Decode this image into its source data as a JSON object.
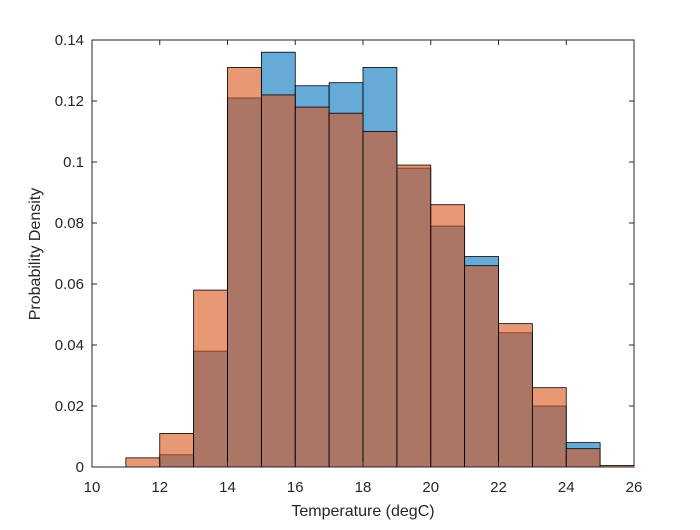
{
  "chart_data": {
    "type": "bar",
    "title": "",
    "xlabel": "Temperature (degC)",
    "ylabel": "Probability Density",
    "xlim": [
      10,
      26
    ],
    "ylim": [
      0,
      0.14
    ],
    "xticks": [
      "10",
      "12",
      "14",
      "16",
      "18",
      "20",
      "22",
      "24",
      "26"
    ],
    "yticks": [
      "0",
      "0.02",
      "0.04",
      "0.06",
      "0.08",
      "0.1",
      "0.12",
      "0.14"
    ],
    "grid": false,
    "legend": "none",
    "bin_edges": [
      11,
      12,
      13,
      14,
      15,
      16,
      17,
      18,
      19,
      20,
      21,
      22,
      23,
      24,
      25,
      26
    ],
    "series": [
      {
        "color": "#0072BD",
        "values": [
          0.0,
          0.004,
          0.038,
          0.121,
          0.136,
          0.125,
          0.126,
          0.131,
          0.098,
          0.079,
          0.069,
          0.044,
          0.02,
          0.008,
          0.0
        ]
      },
      {
        "color": "#D95319",
        "values": [
          0.003,
          0.011,
          0.058,
          0.131,
          0.122,
          0.118,
          0.116,
          0.11,
          0.099,
          0.086,
          0.066,
          0.047,
          0.026,
          0.006,
          0.0005
        ]
      }
    ],
    "face_alpha": 0.6
  }
}
